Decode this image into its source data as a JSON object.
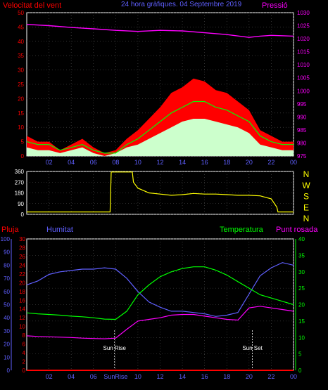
{
  "header": {
    "left_label": "Velocitat del vent",
    "center_label": "24 hora gràfiques. 04 Septembre 2019",
    "right_label": "Pressió"
  },
  "x_ticks": [
    "02",
    "04",
    "06",
    "08",
    "10",
    "12",
    "14",
    "16",
    "18",
    "20",
    "22",
    "00"
  ],
  "x_ticks_bottom": [
    "02",
    "04",
    "06",
    "SunRise",
    "10",
    "12",
    "14",
    "16",
    "18",
    "20",
    "22",
    "00"
  ],
  "colors": {
    "red": "#ff0000",
    "blue": "#5f5fff",
    "magenta": "#ff00ff",
    "green": "#00ff00",
    "yellow": "#ffff00",
    "white": "#ffffff",
    "lightgreen": "#ccffcc",
    "grid": "#555555"
  },
  "chart_data": [
    {
      "type": "line",
      "name": "wind-pressure",
      "left_axis": {
        "ticks": [
          0,
          5,
          10,
          15,
          20,
          25,
          30,
          35,
          40,
          45,
          50
        ],
        "range": [
          0,
          50
        ]
      },
      "right_axis": {
        "ticks": [
          975,
          980,
          985,
          990,
          995,
          1000,
          1005,
          1010,
          1015,
          1020,
          1025,
          1030
        ],
        "range": [
          975,
          1030
        ]
      },
      "x_range_hours": [
        0,
        24
      ],
      "series": [
        {
          "name": "Velocitat del vent",
          "axis": "left",
          "color": "#ff0000",
          "x": [
            0,
            1,
            2,
            3,
            4,
            5,
            6,
            7,
            8,
            9,
            10,
            11,
            12,
            13,
            14,
            15,
            16,
            17,
            18,
            19,
            20,
            21,
            22,
            23,
            24
          ],
          "y": [
            7,
            5,
            5,
            2,
            4,
            6,
            3,
            1,
            2,
            6,
            9,
            13,
            17,
            22,
            24,
            27,
            26,
            23,
            22,
            19,
            16,
            9,
            7,
            5,
            5
          ]
        },
        {
          "name": "",
          "axis": "left",
          "color": "#00ff00",
          "x": [
            0,
            1,
            2,
            3,
            4,
            5,
            6,
            7,
            8,
            9,
            10,
            11,
            12,
            13,
            14,
            15,
            16,
            17,
            18,
            19,
            20,
            21,
            22,
            23,
            24
          ],
          "y": [
            5,
            4,
            4,
            2,
            3,
            4,
            2,
            1,
            1,
            4,
            6,
            9,
            12,
            15,
            17,
            19,
            19,
            17,
            16,
            14,
            12,
            7,
            5,
            4,
            4
          ]
        },
        {
          "name": "",
          "axis": "left",
          "color": "#ccffcc",
          "x": [
            0,
            1,
            2,
            3,
            4,
            5,
            6,
            7,
            8,
            9,
            10,
            11,
            12,
            13,
            14,
            15,
            16,
            17,
            18,
            19,
            20,
            21,
            22,
            23,
            24
          ],
          "y": [
            3,
            2,
            2,
            1,
            2,
            3,
            1,
            0,
            1,
            3,
            4,
            6,
            8,
            10,
            12,
            13,
            13,
            12,
            11,
            10,
            8,
            4,
            3,
            2,
            2
          ]
        },
        {
          "name": "Pressió",
          "axis": "right",
          "color": "#ff00ff",
          "x": [
            0,
            2,
            4,
            6,
            8,
            10,
            12,
            14,
            16,
            18,
            20,
            21,
            22,
            24
          ],
          "y": [
            1025.5,
            1025,
            1024.3,
            1023.8,
            1023.2,
            1022.8,
            1023.2,
            1023,
            1022.3,
            1021.6,
            1020.5,
            1021,
            1021.3,
            1021
          ]
        }
      ]
    },
    {
      "type": "line",
      "name": "wind-direction",
      "left_axis": {
        "ticks": [
          0,
          90,
          180,
          270,
          360
        ],
        "range": [
          0,
          360
        ]
      },
      "right_labels": [
        "N",
        "W",
        "S",
        "E",
        "N"
      ],
      "x_range_hours": [
        0,
        24
      ],
      "series": [
        {
          "name": "",
          "color": "#ffff00",
          "x": [
            0,
            7.5,
            7.6,
            9.5,
            9.6,
            10,
            11,
            12,
            13,
            14,
            15,
            16,
            17,
            18,
            19,
            20,
            21,
            22,
            22.5,
            22.6,
            24
          ],
          "y": [
            20,
            20,
            355,
            355,
            270,
            220,
            180,
            170,
            160,
            165,
            175,
            170,
            170,
            165,
            160,
            160,
            155,
            130,
            60,
            20,
            20
          ]
        }
      ]
    },
    {
      "type": "line",
      "name": "rain-humidity-temperature",
      "axis_pluja": {
        "ticks": [
          0,
          10,
          20,
          30,
          40,
          50,
          60,
          70,
          80,
          90,
          100
        ],
        "range": [
          0,
          100
        ]
      },
      "axis_humitat": {
        "ticks": [
          0,
          2,
          4,
          6,
          8,
          10,
          12,
          14,
          16,
          18,
          20,
          22,
          24,
          26,
          28,
          30
        ],
        "range": [
          0,
          30
        ]
      },
      "axis_temperatura": {
        "ticks": [
          0,
          5,
          10,
          15,
          20,
          25,
          30,
          35,
          40
        ],
        "range": [
          0,
          40
        ]
      },
      "labels": {
        "pluja": "Pluja",
        "humitat": "Humitat",
        "temperatura": "Temperatura",
        "punt_rosada": "Punt rosada",
        "sunrise": "Sun Rise",
        "sunset": "Sun Set"
      },
      "sunrise_hour": 7.9,
      "sunset_hour": 20.3,
      "x_range_hours": [
        0,
        24
      ],
      "series": [
        {
          "name": "Pluja",
          "axis": "pluja",
          "color": "#ff0000",
          "x": [
            0,
            24
          ],
          "y": [
            0,
            0
          ]
        },
        {
          "name": "Humitat",
          "axis": "humitat",
          "color": "#5f5fff",
          "x": [
            0,
            1,
            2,
            3,
            4,
            5,
            6,
            7,
            8,
            9,
            10,
            11,
            12,
            13,
            14,
            15,
            16,
            17,
            18,
            19,
            20,
            21,
            22,
            23,
            24
          ],
          "y": [
            65,
            68,
            73,
            75,
            76,
            77,
            77,
            78,
            77,
            70,
            60,
            52,
            48,
            45,
            45,
            44,
            43,
            41,
            42,
            44,
            58,
            72,
            78,
            82,
            80
          ]
        },
        {
          "name": "Temperatura",
          "axis": "temperatura",
          "color": "#00ff00",
          "x": [
            0,
            1,
            2,
            3,
            4,
            5,
            6,
            7,
            8,
            9,
            10,
            11,
            12,
            13,
            14,
            15,
            16,
            17,
            18,
            19,
            20,
            21,
            22,
            23,
            24
          ],
          "y": [
            17.5,
            17.2,
            17,
            16.8,
            16.5,
            16.3,
            16,
            15.6,
            15.5,
            18,
            23,
            26,
            28.5,
            30,
            31,
            31.5,
            31.5,
            30.5,
            29,
            27,
            25,
            23,
            22,
            21,
            20
          ]
        },
        {
          "name": "Punt rosada",
          "axis": "temperatura",
          "color": "#ff00ff",
          "x": [
            0,
            1,
            2,
            3,
            4,
            5,
            6,
            7,
            8,
            9,
            10,
            11,
            12,
            13,
            14,
            15,
            16,
            17,
            18,
            19,
            20,
            21,
            22,
            23,
            24
          ],
          "y": [
            10.5,
            10.3,
            10.2,
            10.1,
            10,
            9.8,
            9.7,
            9.6,
            9.8,
            12.5,
            15,
            15.5,
            16,
            16.8,
            17,
            17,
            16.5,
            16,
            15.5,
            15.3,
            19,
            19.5,
            19,
            18.5,
            18
          ]
        }
      ]
    }
  ]
}
